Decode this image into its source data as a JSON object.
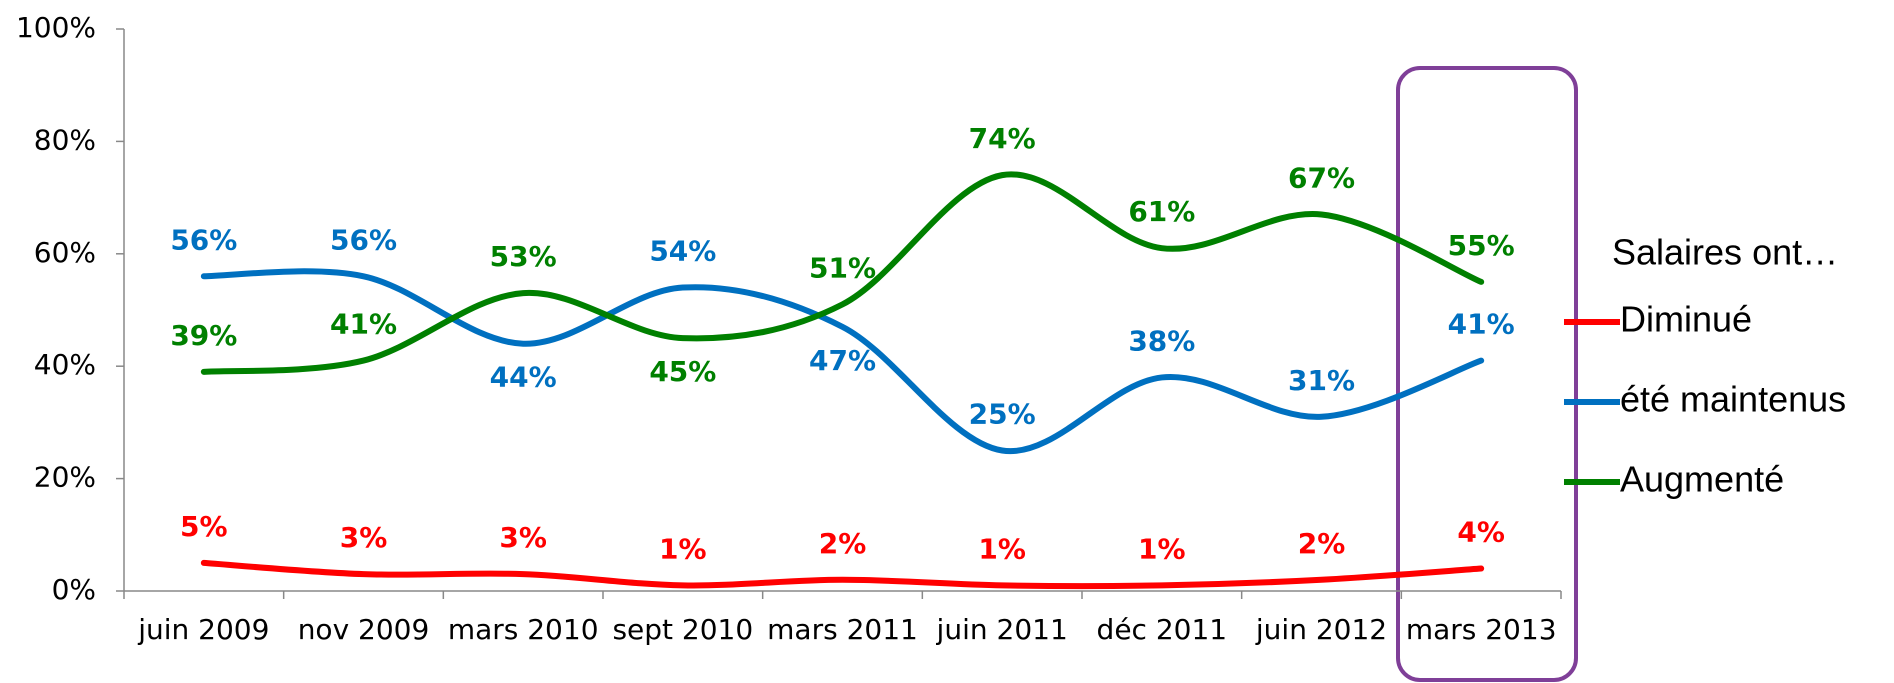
{
  "chart_data": {
    "type": "line",
    "categories": [
      "juin 2009",
      "nov 2009",
      "mars 2010",
      "sept 2010",
      "mars 2011",
      "juin 2011",
      "déc 2011",
      "juin 2012",
      "mars 2013"
    ],
    "legend_title": "Salaires ont…",
    "series": [
      {
        "name": "Diminué",
        "color": "#ff0000",
        "values": [
          5,
          3,
          3,
          1,
          2,
          1,
          1,
          2,
          4
        ],
        "value_labels": [
          "5%",
          "3%",
          "3%",
          "1%",
          "2%",
          "1%",
          "1%",
          "2%",
          "4%"
        ]
      },
      {
        "name": "été maintenus",
        "color": "#0070c0",
        "values": [
          56,
          56,
          44,
          54,
          47,
          25,
          38,
          31,
          41
        ],
        "value_labels": [
          "56%",
          "56%",
          "44%",
          "54%",
          "47%",
          "25%",
          "38%",
          "31%",
          "41%"
        ]
      },
      {
        "name": "Augmenté",
        "color": "#008000",
        "values": [
          39,
          41,
          53,
          45,
          51,
          74,
          61,
          67,
          55
        ],
        "value_labels": [
          "39%",
          "41%",
          "53%",
          "45%",
          "51%",
          "74%",
          "61%",
          "67%",
          "55%"
        ]
      }
    ],
    "ylim": [
      0,
      100
    ],
    "yticks": [
      {
        "value": 0,
        "label": "0%"
      },
      {
        "value": 20,
        "label": "20%"
      },
      {
        "value": 40,
        "label": "40%"
      },
      {
        "value": 60,
        "label": "60%"
      },
      {
        "value": 80,
        "label": "80%"
      },
      {
        "value": 100,
        "label": "100%"
      }
    ],
    "grid": false,
    "legend": "right"
  }
}
